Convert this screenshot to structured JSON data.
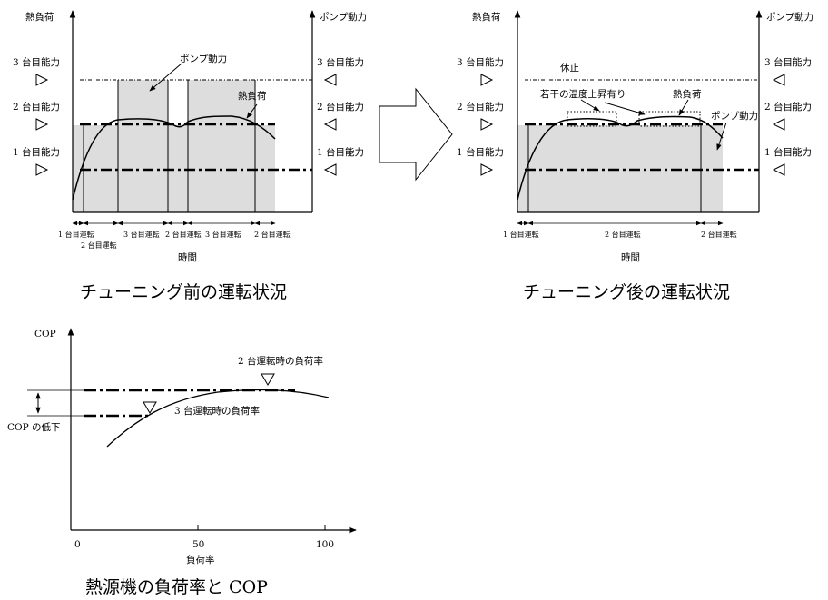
{
  "left_panel": {
    "y_left_label": "熱負荷",
    "y_right_label": "ポンプ動力",
    "capacity_levels": [
      "3 台目能力",
      "2 台目能力",
      "1 台目能力"
    ],
    "annotations": {
      "pump_power": "ポンプ動力",
      "heat_load": "熱負荷"
    },
    "segments": [
      "1 台目運転",
      "2 台目運転",
      "3 台目運転",
      "2 台目運転",
      "3 台目運転",
      "2 台目運転"
    ],
    "x_label": "時間",
    "caption": "チューニング前の運転状況"
  },
  "right_panel": {
    "y_left_label": "熱負荷",
    "y_right_label": "ポンプ動力",
    "capacity_levels": [
      "3 台目能力",
      "2 台目能力",
      "1 台目能力"
    ],
    "annotations": {
      "stop": "休止",
      "temp_rise": "若干の温度上昇有り",
      "heat_load": "熱負荷",
      "pump_power": "ポンプ動力"
    },
    "segments": [
      "1 台目運転",
      "2 台目運転",
      "2 台目運転"
    ],
    "x_label": "時間",
    "caption": "チューニング後の運転状況"
  },
  "cop_panel": {
    "y_label": "COP",
    "x_label": "負荷率",
    "x_ticks": [
      "0",
      "50",
      "100"
    ],
    "labels": {
      "two_units": "2 台運転時の負荷率",
      "three_units": "3 台運転時の負荷率",
      "cop_drop": "COP の低下"
    },
    "caption": "熱源機の負荷率と COP"
  },
  "colors": {
    "shade": "#dddddd",
    "line": "#000000"
  }
}
